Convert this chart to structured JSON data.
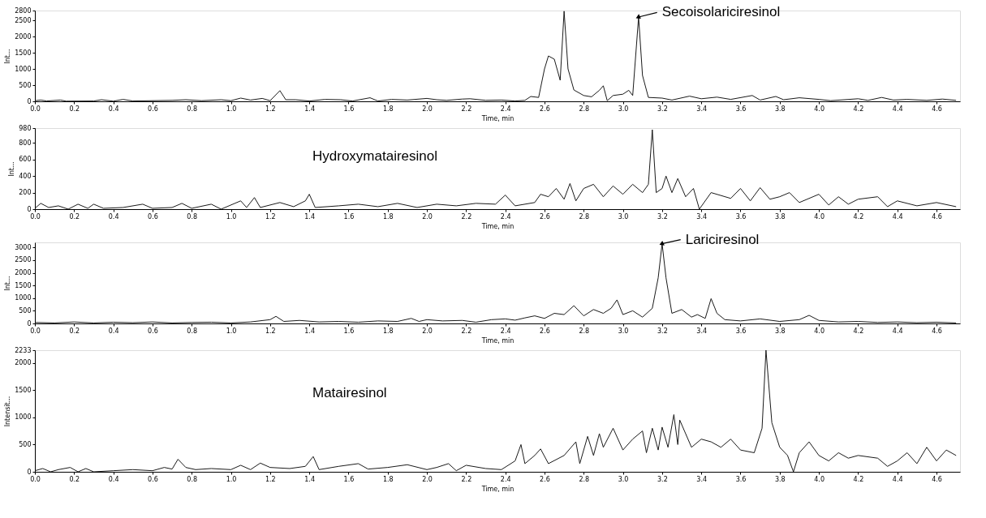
{
  "chart_data": [
    {
      "type": "line",
      "xlabel": "Time, min",
      "ylabel": "Int...",
      "color": "#1a1a1a",
      "grid": false,
      "xlim": [
        0,
        4.72
      ],
      "ylim": [
        0,
        2800
      ],
      "yticks": [
        0,
        500,
        1000,
        1500,
        2000,
        2500,
        2800
      ],
      "xticks": [
        {
          "value": 0,
          "label": "0.0"
        },
        {
          "value": 0.2,
          "label": "0.2"
        },
        {
          "value": 0.4,
          "label": "0.4"
        },
        {
          "value": 0.6,
          "label": "0.6"
        },
        {
          "value": 0.8,
          "label": "0.8"
        },
        {
          "value": 1,
          "label": "1.0"
        },
        {
          "value": 1.2,
          "label": "1.2"
        },
        {
          "value": 1.4,
          "label": "1.4"
        },
        {
          "value": 1.6,
          "label": "1.6"
        },
        {
          "value": 1.8,
          "label": "1.8"
        },
        {
          "value": 2,
          "label": "2.0"
        },
        {
          "value": 2.2,
          "label": "2.2"
        },
        {
          "value": 2.4,
          "label": "2.4"
        },
        {
          "value": 2.6,
          "label": "2.6"
        },
        {
          "value": 2.8,
          "label": "2.8"
        },
        {
          "value": 3,
          "label": "3.0"
        },
        {
          "value": 3.2,
          "label": "3.2"
        },
        {
          "value": 3.4,
          "label": "3.4"
        },
        {
          "value": 3.6,
          "label": "3.6"
        },
        {
          "value": 3.8,
          "label": "3.8"
        },
        {
          "value": 4,
          "label": "4.0"
        },
        {
          "value": 4.2,
          "label": "4.2"
        },
        {
          "value": 4.4,
          "label": "4.4"
        },
        {
          "value": 4.6,
          "label": "4.6"
        }
      ],
      "x": [
        0.0,
        0.03,
        0.06,
        0.13,
        0.16,
        0.3,
        0.34,
        0.4,
        0.45,
        0.5,
        0.7,
        0.77,
        0.85,
        0.95,
        1.0,
        1.05,
        1.1,
        1.16,
        1.2,
        1.25,
        1.28,
        1.33,
        1.4,
        1.48,
        1.56,
        1.62,
        1.71,
        1.75,
        1.82,
        1.9,
        2.0,
        2.05,
        2.1,
        2.18,
        2.22,
        2.3,
        2.38,
        2.45,
        2.5,
        2.53,
        2.57,
        2.6,
        2.62,
        2.65,
        2.68,
        2.7,
        2.72,
        2.75,
        2.8,
        2.84,
        2.88,
        2.9,
        2.92,
        2.95,
        3.0,
        3.03,
        3.05,
        3.08,
        3.1,
        3.13,
        3.2,
        3.25,
        3.34,
        3.4,
        3.48,
        3.55,
        3.66,
        3.7,
        3.78,
        3.82,
        3.9,
        4.0,
        4.06,
        4.2,
        4.25,
        4.32,
        4.38,
        4.45,
        4.55,
        4.63,
        4.7
      ],
      "values": [
        20,
        40,
        10,
        40,
        5,
        10,
        50,
        5,
        60,
        10,
        30,
        50,
        20,
        50,
        20,
        100,
        40,
        90,
        20,
        330,
        50,
        50,
        10,
        60,
        50,
        10,
        110,
        10,
        60,
        40,
        90,
        50,
        30,
        70,
        80,
        30,
        40,
        10,
        30,
        150,
        120,
        1000,
        1400,
        1300,
        650,
        2780,
        1000,
        350,
        180,
        140,
        340,
        480,
        20,
        180,
        220,
        340,
        180,
        2600,
        800,
        120,
        100,
        40,
        160,
        80,
        130,
        60,
        180,
        40,
        150,
        50,
        110,
        60,
        20,
        80,
        30,
        120,
        40,
        60,
        30,
        70,
        30
      ],
      "annotations": [
        {
          "text": "Secoisolariciresinol",
          "x": 3.08,
          "y": 2600
        }
      ]
    },
    {
      "type": "line",
      "xlabel": "Time, min",
      "ylabel": "Int...",
      "color": "#1a1a1a",
      "grid": false,
      "xlim": [
        0,
        4.72
      ],
      "ylim": [
        0,
        980
      ],
      "yticks": [
        0,
        200,
        400,
        600,
        800,
        980
      ],
      "xticks": [
        {
          "value": 0,
          "label": "0.0"
        },
        {
          "value": 0.2,
          "label": "0.2"
        },
        {
          "value": 0.4,
          "label": "0.4"
        },
        {
          "value": 0.6,
          "label": "0.6"
        },
        {
          "value": 0.8,
          "label": "0.8"
        },
        {
          "value": 1,
          "label": "1.0"
        },
        {
          "value": 1.2,
          "label": "1.2"
        },
        {
          "value": 1.4,
          "label": "1.4"
        },
        {
          "value": 1.6,
          "label": "1.6"
        },
        {
          "value": 1.8,
          "label": "1.8"
        },
        {
          "value": 2,
          "label": "2.0"
        },
        {
          "value": 2.2,
          "label": "2.2"
        },
        {
          "value": 2.4,
          "label": "2.4"
        },
        {
          "value": 2.6,
          "label": "2.6"
        },
        {
          "value": 2.8,
          "label": "2.8"
        },
        {
          "value": 3,
          "label": "3.0"
        },
        {
          "value": 3.2,
          "label": "3.2"
        },
        {
          "value": 3.4,
          "label": "3.4"
        },
        {
          "value": 3.6,
          "label": "3.6"
        },
        {
          "value": 3.8,
          "label": "3.8"
        },
        {
          "value": 4,
          "label": "4.0"
        },
        {
          "value": 4.2,
          "label": "4.2"
        },
        {
          "value": 4.4,
          "label": "4.4"
        },
        {
          "value": 4.6,
          "label": "4.6"
        }
      ],
      "x": [
        0.0,
        0.03,
        0.07,
        0.12,
        0.17,
        0.22,
        0.27,
        0.3,
        0.35,
        0.45,
        0.55,
        0.6,
        0.7,
        0.75,
        0.8,
        0.9,
        0.95,
        1.05,
        1.08,
        1.12,
        1.15,
        1.25,
        1.32,
        1.38,
        1.4,
        1.43,
        1.55,
        1.65,
        1.75,
        1.85,
        1.95,
        2.05,
        2.15,
        2.25,
        2.35,
        2.4,
        2.45,
        2.55,
        2.58,
        2.62,
        2.66,
        2.7,
        2.73,
        2.76,
        2.8,
        2.85,
        2.9,
        2.95,
        3.0,
        3.05,
        3.1,
        3.13,
        3.15,
        3.17,
        3.2,
        3.22,
        3.25,
        3.28,
        3.32,
        3.36,
        3.39,
        3.45,
        3.55,
        3.6,
        3.65,
        3.7,
        3.75,
        3.8,
        3.85,
        3.9,
        4.0,
        4.05,
        4.1,
        4.15,
        4.2,
        4.3,
        4.35,
        4.4,
        4.5,
        4.6,
        4.7
      ],
      "values": [
        10,
        70,
        20,
        40,
        0,
        60,
        10,
        60,
        10,
        20,
        60,
        10,
        20,
        70,
        10,
        60,
        0,
        100,
        20,
        140,
        20,
        80,
        30,
        100,
        180,
        20,
        40,
        60,
        30,
        70,
        20,
        60,
        40,
        70,
        60,
        170,
        40,
        80,
        180,
        150,
        250,
        120,
        310,
        100,
        250,
        300,
        150,
        280,
        180,
        300,
        200,
        300,
        960,
        200,
        250,
        400,
        200,
        370,
        150,
        250,
        0,
        200,
        130,
        250,
        100,
        260,
        120,
        150,
        200,
        80,
        180,
        50,
        150,
        60,
        120,
        150,
        30,
        100,
        40,
        80,
        30
      ],
      "annotations": [
        "Hydroxymatairesinol"
      ]
    },
    {
      "type": "line",
      "xlabel": "Time, min",
      "ylabel": "Int...",
      "color": "#1a1a1a",
      "grid": false,
      "xlim": [
        0,
        4.72
      ],
      "ylim": [
        0,
        3200
      ],
      "yticks": [
        0,
        500,
        1000,
        1500,
        2000,
        2500,
        3000
      ],
      "xticks": [
        {
          "value": 0,
          "label": "0.0"
        },
        {
          "value": 0.2,
          "label": "0.2"
        },
        {
          "value": 0.4,
          "label": "0.4"
        },
        {
          "value": 0.6,
          "label": "0.6"
        },
        {
          "value": 0.8,
          "label": "0.8"
        },
        {
          "value": 1,
          "label": "1.0"
        },
        {
          "value": 1.2,
          "label": "1.2"
        },
        {
          "value": 1.4,
          "label": "1.4"
        },
        {
          "value": 1.6,
          "label": "1.6"
        },
        {
          "value": 1.8,
          "label": "1.8"
        },
        {
          "value": 2,
          "label": "2.0"
        },
        {
          "value": 2.2,
          "label": "2.2"
        },
        {
          "value": 2.4,
          "label": "2.4"
        },
        {
          "value": 2.6,
          "label": "2.6"
        },
        {
          "value": 2.8,
          "label": "2.8"
        },
        {
          "value": 3,
          "label": "3.0"
        },
        {
          "value": 3.2,
          "label": "3.2"
        },
        {
          "value": 3.4,
          "label": "3.4"
        },
        {
          "value": 3.6,
          "label": "3.6"
        },
        {
          "value": 3.8,
          "label": "3.8"
        },
        {
          "value": 4,
          "label": "4.0"
        },
        {
          "value": 4.2,
          "label": "4.2"
        },
        {
          "value": 4.4,
          "label": "4.4"
        },
        {
          "value": 4.6,
          "label": "4.6"
        }
      ],
      "x": [
        0.0,
        0.1,
        0.2,
        0.3,
        0.4,
        0.5,
        0.6,
        0.7,
        0.8,
        0.9,
        1.0,
        1.1,
        1.2,
        1.23,
        1.27,
        1.35,
        1.45,
        1.55,
        1.65,
        1.75,
        1.85,
        1.92,
        1.96,
        2.0,
        2.08,
        2.18,
        2.25,
        2.33,
        2.4,
        2.45,
        2.5,
        2.55,
        2.6,
        2.65,
        2.7,
        2.75,
        2.8,
        2.85,
        2.9,
        2.94,
        2.97,
        3.0,
        3.05,
        3.1,
        3.15,
        3.18,
        3.2,
        3.22,
        3.25,
        3.3,
        3.35,
        3.38,
        3.42,
        3.45,
        3.48,
        3.52,
        3.6,
        3.7,
        3.8,
        3.9,
        3.95,
        4.0,
        4.1,
        4.2,
        4.3,
        4.4,
        4.5,
        4.6,
        4.7
      ],
      "values": [
        40,
        20,
        60,
        20,
        50,
        30,
        60,
        20,
        40,
        50,
        20,
        60,
        150,
        280,
        80,
        120,
        60,
        80,
        50,
        100,
        80,
        200,
        80,
        150,
        100,
        120,
        50,
        150,
        180,
        130,
        220,
        300,
        200,
        400,
        350,
        700,
        300,
        550,
        400,
        600,
        930,
        350,
        500,
        250,
        600,
        1800,
        3150,
        1800,
        400,
        550,
        250,
        350,
        200,
        980,
        400,
        150,
        100,
        180,
        80,
        150,
        320,
        120,
        60,
        80,
        40,
        60,
        30,
        50,
        20
      ],
      "annotations": [
        {
          "text": "Lariciresinol",
          "x": 3.2,
          "y": 3150
        }
      ]
    },
    {
      "type": "line",
      "xlabel": "Time, min",
      "ylabel": "Intensit...",
      "color": "#1a1a1a",
      "grid": false,
      "xlim": [
        0,
        4.72
      ],
      "ylim": [
        0,
        2233
      ],
      "yticks": [
        0,
        500,
        1000,
        1500,
        2000,
        2233
      ],
      "xticks": [
        {
          "value": 0,
          "label": "0.0"
        },
        {
          "value": 0.2,
          "label": "0.2"
        },
        {
          "value": 0.4,
          "label": "0.4"
        },
        {
          "value": 0.6,
          "label": "0.6"
        },
        {
          "value": 0.8,
          "label": "0.8"
        },
        {
          "value": 1,
          "label": "1.0"
        },
        {
          "value": 1.2,
          "label": "1.2"
        },
        {
          "value": 1.4,
          "label": "1.4"
        },
        {
          "value": 1.6,
          "label": "1.6"
        },
        {
          "value": 1.8,
          "label": "1.8"
        },
        {
          "value": 2,
          "label": "2.0"
        },
        {
          "value": 2.2,
          "label": "2.2"
        },
        {
          "value": 2.4,
          "label": "2.4"
        },
        {
          "value": 2.6,
          "label": "2.6"
        },
        {
          "value": 2.8,
          "label": "2.8"
        },
        {
          "value": 3,
          "label": "3.0"
        },
        {
          "value": 3.2,
          "label": "3.2"
        },
        {
          "value": 3.4,
          "label": "3.4"
        },
        {
          "value": 3.6,
          "label": "3.6"
        },
        {
          "value": 3.8,
          "label": "3.8"
        },
        {
          "value": 4,
          "label": "4.0"
        },
        {
          "value": 4.2,
          "label": "4.2"
        },
        {
          "value": 4.4,
          "label": "4.4"
        },
        {
          "value": 4.6,
          "label": "4.6"
        }
      ],
      "x": [
        0.0,
        0.04,
        0.08,
        0.12,
        0.18,
        0.22,
        0.26,
        0.3,
        0.4,
        0.5,
        0.6,
        0.66,
        0.7,
        0.73,
        0.77,
        0.82,
        0.9,
        1.0,
        1.05,
        1.1,
        1.15,
        1.2,
        1.3,
        1.38,
        1.42,
        1.45,
        1.55,
        1.65,
        1.7,
        1.8,
        1.9,
        2.0,
        2.05,
        2.11,
        2.15,
        2.2,
        2.3,
        2.38,
        2.45,
        2.48,
        2.5,
        2.55,
        2.58,
        2.62,
        2.7,
        2.76,
        2.78,
        2.82,
        2.85,
        2.88,
        2.9,
        2.95,
        3.0,
        3.05,
        3.1,
        3.12,
        3.15,
        3.18,
        3.2,
        3.23,
        3.26,
        3.28,
        3.29,
        3.32,
        3.35,
        3.4,
        3.45,
        3.5,
        3.55,
        3.6,
        3.67,
        3.71,
        3.73,
        3.76,
        3.8,
        3.84,
        3.87,
        3.9,
        3.95,
        4.0,
        4.05,
        4.1,
        4.15,
        4.2,
        4.3,
        4.35,
        4.4,
        4.45,
        4.5,
        4.55,
        4.6,
        4.65,
        4.7
      ],
      "values": [
        20,
        60,
        0,
        40,
        80,
        0,
        60,
        0,
        20,
        40,
        20,
        80,
        50,
        230,
        80,
        40,
        60,
        40,
        120,
        40,
        160,
        80,
        60,
        100,
        280,
        40,
        100,
        150,
        50,
        80,
        130,
        40,
        80,
        150,
        20,
        120,
        60,
        40,
        200,
        500,
        150,
        300,
        420,
        150,
        300,
        550,
        150,
        650,
        300,
        700,
        450,
        800,
        400,
        600,
        750,
        350,
        800,
        400,
        820,
        450,
        1050,
        500,
        950,
        700,
        450,
        600,
        550,
        450,
        600,
        400,
        350,
        800,
        2233,
        900,
        450,
        300,
        0,
        350,
        550,
        300,
        200,
        350,
        250,
        300,
        250,
        100,
        200,
        350,
        150,
        450,
        200,
        400,
        300
      ],
      "annotations": [
        "Matairesinol"
      ]
    }
  ]
}
